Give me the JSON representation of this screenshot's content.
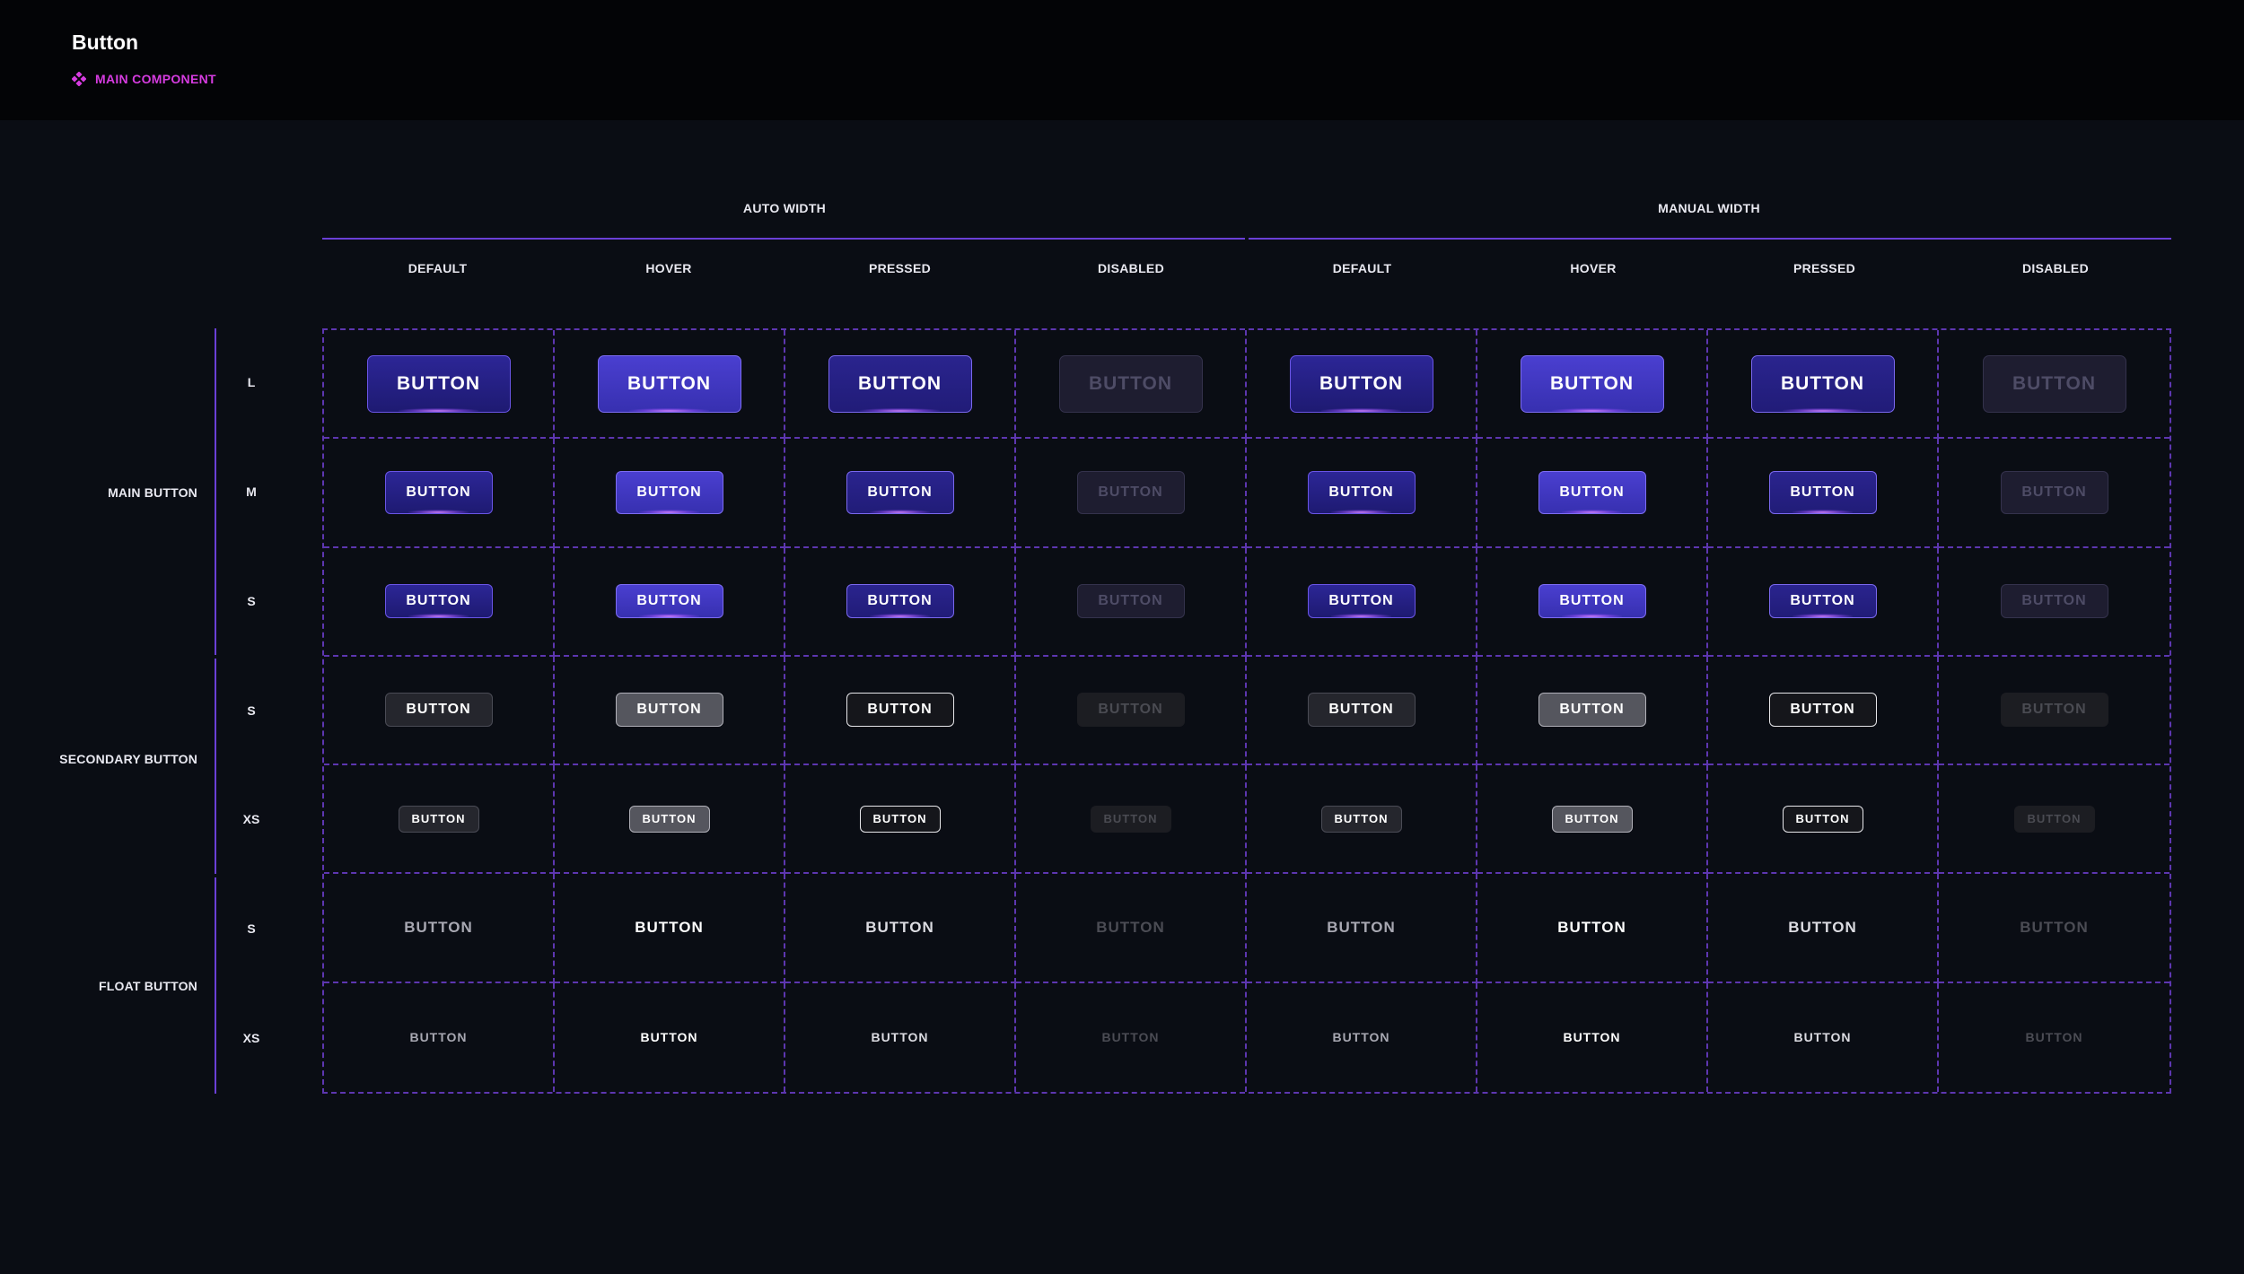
{
  "header": {
    "title": "Button",
    "component_tag": "MAIN COMPONENT",
    "tag_icon": "component-diamond-icon",
    "tag_color": "#d63ce0"
  },
  "column_groups": [
    {
      "label": "AUTO WIDTH"
    },
    {
      "label": "MANUAL WIDTH"
    }
  ],
  "states": [
    "DEFAULT",
    "HOVER",
    "PRESSED",
    "DISABLED",
    "DEFAULT",
    "HOVER",
    "PRESSED",
    "DISABLED"
  ],
  "row_groups": [
    {
      "label": "MAIN BUTTON",
      "sizes": [
        "L",
        "M",
        "S"
      ]
    },
    {
      "label": "SECONDARY BUTTON",
      "sizes": [
        "S",
        "XS"
      ]
    },
    {
      "label": "FLOAT BUTTON",
      "sizes": [
        "S",
        "XS"
      ]
    }
  ],
  "button_label": "BUTTON",
  "colors": {
    "background": "#0a0d14",
    "header_background": "#030406",
    "accent_line": "#6a3fd6",
    "grid_dash": "#5d36b0",
    "main_default": "#2c2696",
    "main_hover": "#4a3fd0",
    "main_disabled": "#1e1d30"
  }
}
